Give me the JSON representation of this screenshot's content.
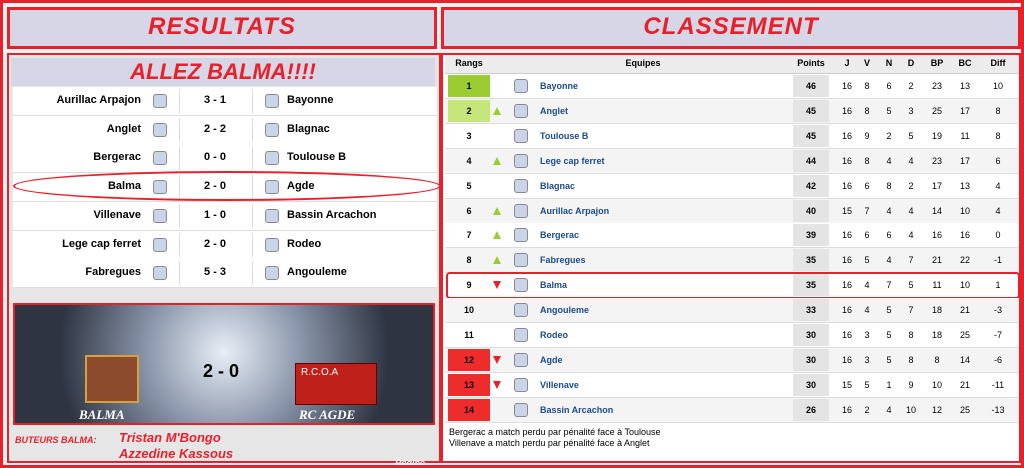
{
  "header": {
    "left_title": "RESULTATS",
    "right_title": "CLASSEMENT"
  },
  "results": {
    "banner": "ALLEZ BALMA!!!!",
    "matches": [
      {
        "home": "Aurillac Arpajon",
        "score": "3 - 1",
        "away": "Bayonne"
      },
      {
        "home": "Anglet",
        "score": "2 - 2",
        "away": "Blagnac"
      },
      {
        "home": "Bergerac",
        "score": "0 - 0",
        "away": "Toulouse B"
      },
      {
        "home": "Balma",
        "score": "2 - 0",
        "away": "Agde",
        "highlight": "#e8202a"
      },
      {
        "home": "Villenave",
        "score": "1 - 0",
        "away": "Bassin Arcachon"
      },
      {
        "home": "Lege cap ferret",
        "score": "2 - 0",
        "away": "Rodeo"
      },
      {
        "home": "Fabregues",
        "score": "5 - 3",
        "away": "Angouleme"
      }
    ],
    "poster": {
      "home": "BALMA",
      "score": "2 - 0",
      "away_badge": "R.C.O.A",
      "away": "RC AGDE"
    },
    "scorers": {
      "label": "BUTEURS BALMA:",
      "names": [
        "Tristan M'Bongo",
        "Azzedine Kassous"
      ]
    },
    "signature": "Régine"
  },
  "table": {
    "columns": [
      "Rangs",
      "Equipes",
      "Points",
      "J",
      "V",
      "N",
      "D",
      "BP",
      "BC",
      "Diff"
    ],
    "rows": [
      {
        "rank": 1,
        "team": "Bayonne",
        "points": 46,
        "j": 16,
        "v": 8,
        "n": 6,
        "d": 2,
        "bp": 23,
        "bc": 13,
        "diff": 10,
        "rank_color": "#9acd32"
      },
      {
        "rank": 2,
        "team": "Anglet",
        "points": 45,
        "j": 16,
        "v": 8,
        "n": 5,
        "d": 3,
        "bp": 25,
        "bc": 17,
        "diff": 8,
        "rank_color": "#c5e67a",
        "trend": "up"
      },
      {
        "rank": 3,
        "team": "Toulouse B",
        "points": 45,
        "j": 16,
        "v": 9,
        "n": 2,
        "d": 5,
        "bp": 19,
        "bc": 11,
        "diff": 8
      },
      {
        "rank": 4,
        "team": "Lege cap ferret",
        "points": 44,
        "j": 16,
        "v": 8,
        "n": 4,
        "d": 4,
        "bp": 23,
        "bc": 17,
        "diff": 6,
        "trend": "up"
      },
      {
        "rank": 5,
        "team": "Blagnac",
        "points": 42,
        "j": 16,
        "v": 6,
        "n": 8,
        "d": 2,
        "bp": 17,
        "bc": 13,
        "diff": 4
      },
      {
        "rank": 6,
        "team": "Aurillac Arpajon",
        "points": 40,
        "j": 15,
        "v": 7,
        "n": 4,
        "d": 4,
        "bp": 14,
        "bc": 10,
        "diff": 4,
        "trend": "up"
      },
      {
        "rank": 7,
        "team": "Bergerac",
        "points": 39,
        "j": 16,
        "v": 6,
        "n": 6,
        "d": 4,
        "bp": 16,
        "bc": 16,
        "diff": 0,
        "trend": "up"
      },
      {
        "rank": 8,
        "team": "Fabregues",
        "points": 35,
        "j": 16,
        "v": 5,
        "n": 4,
        "d": 7,
        "bp": 21,
        "bc": 22,
        "diff": -1,
        "trend": "up"
      },
      {
        "rank": 9,
        "team": "Balma",
        "points": 35,
        "j": 16,
        "v": 4,
        "n": 7,
        "d": 5,
        "bp": 11,
        "bc": 10,
        "diff": 1,
        "trend": "down",
        "highlight": "#e8202a"
      },
      {
        "rank": 10,
        "team": "Angouleme",
        "points": 33,
        "j": 16,
        "v": 4,
        "n": 5,
        "d": 7,
        "bp": 18,
        "bc": 21,
        "diff": -3
      },
      {
        "rank": 11,
        "team": "Rodeo",
        "points": 30,
        "j": 16,
        "v": 3,
        "n": 5,
        "d": 8,
        "bp": 18,
        "bc": 25,
        "diff": -7
      },
      {
        "rank": 12,
        "team": "Agde",
        "points": 30,
        "j": 16,
        "v": 3,
        "n": 5,
        "d": 8,
        "bp": 8,
        "bc": 14,
        "diff": -6,
        "trend": "down",
        "rank_color": "#ee2c2c"
      },
      {
        "rank": 13,
        "team": "Villenave",
        "points": 30,
        "j": 15,
        "v": 5,
        "n": 1,
        "d": 9,
        "bp": 10,
        "bc": 21,
        "diff": -11,
        "trend": "down",
        "rank_color": "#ee2c2c"
      },
      {
        "rank": 14,
        "team": "Bassin Arcachon",
        "points": 26,
        "j": 16,
        "v": 2,
        "n": 4,
        "d": 10,
        "bp": 12,
        "bc": 25,
        "diff": -13,
        "rank_color": "#ee2c2c"
      }
    ],
    "notes": [
      "Bergerac a match perdu par pénalité face à Toulouse",
      "Villenave a match perdu par pénalité face à Anglet"
    ]
  }
}
